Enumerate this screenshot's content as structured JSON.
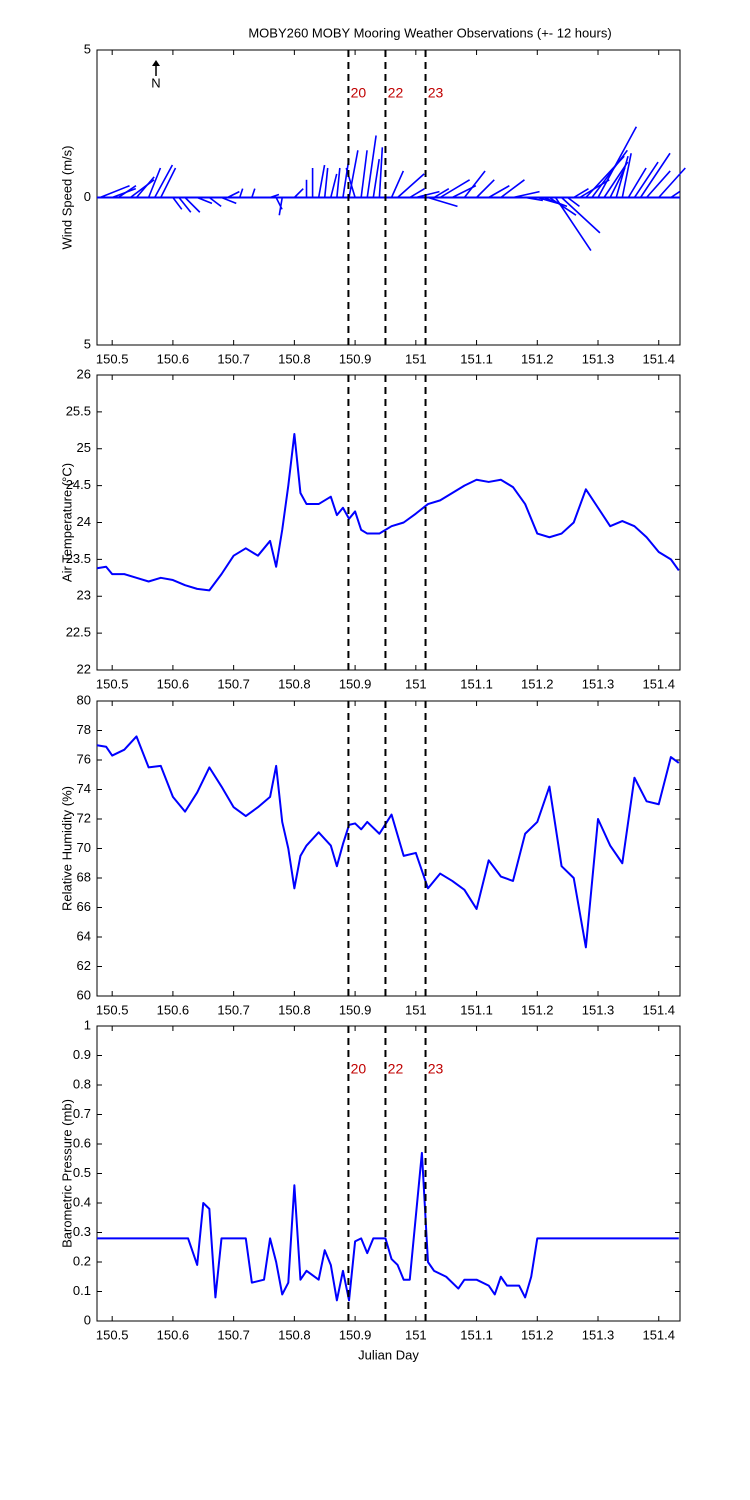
{
  "chart_data": [
    {
      "type": "stick",
      "title": "MOBY260 MOBY Mooring Weather Observations (+- 12 hours)",
      "ylabel": "Wind Speed (m/s)",
      "north_label": "N",
      "color": "#0000ff",
      "xlim": [
        150.475,
        151.435
      ],
      "xticks": [
        150.5,
        150.6,
        150.7,
        150.8,
        150.9,
        151,
        151.1,
        151.2,
        151.3,
        151.4
      ],
      "ylim": [
        -5,
        5
      ],
      "yticks": [
        {
          "value": -5,
          "label": "5"
        },
        0,
        5
      ],
      "vlines": [
        {
          "value": 150.889,
          "label": "20"
        },
        {
          "value": 150.95,
          "label": "22"
        },
        {
          "value": 151.016,
          "label": "23"
        }
      ],
      "x": [
        150.48,
        150.5,
        150.51,
        150.53,
        150.54,
        150.56,
        150.57,
        150.58,
        150.6,
        150.61,
        150.62,
        150.64,
        150.66,
        150.68,
        150.69,
        150.71,
        150.73,
        150.76,
        150.77,
        150.78,
        150.8,
        150.82,
        150.83,
        150.84,
        150.85,
        150.86,
        150.87,
        150.88,
        150.89,
        150.9,
        150.91,
        150.92,
        150.93,
        150.94,
        150.96,
        150.97,
        150.99,
        151.0,
        151.02,
        151.03,
        151.04,
        151.06,
        151.08,
        151.1,
        151.12,
        151.14,
        151.16,
        151.18,
        151.2,
        151.21,
        151.22,
        151.23,
        151.24,
        151.25,
        151.26,
        151.27,
        151.28,
        151.29,
        151.3,
        151.31,
        151.32,
        151.33,
        151.34,
        151.35,
        151.36,
        151.37,
        151.38,
        151.4,
        151.42
      ],
      "u": [
        1.0,
        0.8,
        0.6,
        0.8,
        0.6,
        0.4,
        0.6,
        0.5,
        0.3,
        0.4,
        0.5,
        0.5,
        0.4,
        0.5,
        0.4,
        0.1,
        0.1,
        0.3,
        0.2,
        -0.1,
        0.3,
        0.0,
        0.0,
        0.2,
        0.1,
        0.2,
        0.1,
        0.2,
        0.3,
        -0.3,
        0.2,
        0.3,
        0.2,
        0.1,
        0.4,
        0.9,
        0.5,
        0.8,
        1.0,
        0.5,
        1.0,
        0.8,
        0.7,
        0.6,
        0.7,
        0.8,
        0.9,
        0.6,
        0.7,
        0.8,
        0.9,
        1.2,
        1.3,
        0.4,
        0.5,
        1.0,
        1.3,
        1.2,
        1.3,
        0.8,
        0.5,
        0.4,
        0.3,
        0.6,
        0.8,
        1.0,
        0.8,
        0.9,
        0.3
      ],
      "v": [
        0.4,
        0.3,
        0.4,
        0.6,
        0.7,
        1.0,
        1.1,
        1.0,
        -0.4,
        -0.5,
        -0.5,
        -0.2,
        -0.3,
        -0.2,
        0.2,
        0.3,
        0.3,
        0.1,
        -0.4,
        -0.6,
        0.3,
        0.6,
        1.0,
        1.1,
        1.0,
        0.8,
        1.0,
        1.3,
        1.6,
        1.0,
        1.6,
        2.1,
        1.3,
        1.7,
        0.9,
        0.8,
        0.3,
        0.2,
        -0.3,
        0.3,
        0.6,
        0.4,
        0.9,
        0.6,
        0.4,
        0.6,
        0.2,
        -0.1,
        -0.2,
        -0.3,
        -0.6,
        -1.8,
        -1.2,
        -0.3,
        0.3,
        0.6,
        1.4,
        1.6,
        2.4,
        1.2,
        1.0,
        1.4,
        1.5,
        1.0,
        1.2,
        1.5,
        0.9,
        1.0,
        0.2
      ]
    },
    {
      "type": "line",
      "ylabel": "Air Temperature (°C)",
      "color": "#0000ff",
      "xlim": [
        150.475,
        151.435
      ],
      "xticks": [
        150.5,
        150.6,
        150.7,
        150.8,
        150.9,
        151,
        151.1,
        151.2,
        151.3,
        151.4
      ],
      "ylim": [
        22,
        26
      ],
      "yticks": [
        22,
        22.5,
        23,
        23.5,
        24,
        24.5,
        25,
        25.5,
        26
      ],
      "vlines": [
        150.889,
        150.95,
        151.016
      ],
      "x": [
        150.475,
        150.49,
        150.5,
        150.52,
        150.54,
        150.56,
        150.58,
        150.6,
        150.62,
        150.64,
        150.66,
        150.68,
        150.7,
        150.72,
        150.74,
        150.76,
        150.77,
        150.78,
        150.79,
        150.8,
        150.81,
        150.82,
        150.84,
        150.86,
        150.87,
        150.88,
        150.89,
        150.9,
        150.91,
        150.92,
        150.94,
        150.96,
        150.98,
        151.0,
        151.02,
        151.04,
        151.06,
        151.08,
        151.1,
        151.12,
        151.14,
        151.16,
        151.18,
        151.2,
        151.22,
        151.24,
        151.26,
        151.28,
        151.3,
        151.32,
        151.34,
        151.36,
        151.38,
        151.4,
        151.42,
        151.433
      ],
      "values": [
        23.38,
        23.4,
        23.3,
        23.3,
        23.25,
        23.2,
        23.25,
        23.22,
        23.15,
        23.1,
        23.08,
        23.3,
        23.55,
        23.65,
        23.55,
        23.75,
        23.4,
        23.9,
        24.5,
        25.2,
        24.4,
        24.25,
        24.25,
        24.35,
        24.1,
        24.2,
        24.05,
        24.15,
        23.9,
        23.85,
        23.85,
        23.95,
        24.0,
        24.12,
        24.25,
        24.3,
        24.4,
        24.5,
        24.58,
        24.55,
        24.58,
        24.48,
        24.25,
        23.85,
        23.8,
        23.85,
        24.0,
        24.45,
        24.2,
        23.95,
        24.02,
        23.95,
        23.8,
        23.6,
        23.5,
        23.35
      ]
    },
    {
      "type": "line",
      "ylabel": "Relative Humidity (%)",
      "color": "#0000ff",
      "xlim": [
        150.475,
        151.435
      ],
      "xticks": [
        150.5,
        150.6,
        150.7,
        150.8,
        150.9,
        151,
        151.1,
        151.2,
        151.3,
        151.4
      ],
      "ylim": [
        60,
        80
      ],
      "yticks": [
        60,
        62,
        64,
        66,
        68,
        70,
        72,
        74,
        76,
        78,
        80
      ],
      "vlines": [
        150.889,
        150.95,
        151.016
      ],
      "x": [
        150.475,
        150.49,
        150.5,
        150.52,
        150.54,
        150.56,
        150.58,
        150.6,
        150.62,
        150.64,
        150.66,
        150.68,
        150.7,
        150.72,
        150.74,
        150.76,
        150.77,
        150.78,
        150.79,
        150.8,
        150.81,
        150.82,
        150.84,
        150.86,
        150.87,
        150.88,
        150.89,
        150.9,
        150.91,
        150.92,
        150.94,
        150.96,
        150.98,
        151.0,
        151.02,
        151.04,
        151.06,
        151.08,
        151.1,
        151.12,
        151.14,
        151.16,
        151.18,
        151.2,
        151.22,
        151.24,
        151.26,
        151.28,
        151.3,
        151.32,
        151.34,
        151.36,
        151.38,
        151.4,
        151.42,
        151.433
      ],
      "values": [
        77.0,
        76.9,
        76.3,
        76.7,
        77.6,
        75.5,
        75.6,
        73.5,
        72.5,
        73.8,
        75.5,
        74.2,
        72.8,
        72.2,
        72.8,
        73.5,
        75.6,
        71.8,
        70.0,
        67.3,
        69.5,
        70.2,
        71.1,
        70.2,
        68.8,
        70.3,
        71.6,
        71.7,
        71.3,
        71.8,
        71.0,
        72.3,
        69.5,
        69.7,
        67.3,
        68.3,
        67.8,
        67.2,
        65.9,
        69.2,
        68.1,
        67.8,
        71.0,
        71.8,
        74.2,
        68.8,
        68.0,
        63.3,
        72.0,
        70.2,
        69.0,
        74.8,
        73.2,
        73.0,
        76.2,
        75.8
      ]
    },
    {
      "type": "line",
      "ylabel": "Barometric Pressure (mb)",
      "xlabel": "Julian Day",
      "color": "#0000ff",
      "xlim": [
        150.475,
        151.435
      ],
      "xticks": [
        150.5,
        150.6,
        150.7,
        150.8,
        150.9,
        151,
        151.1,
        151.2,
        151.3,
        151.4
      ],
      "ylim": [
        0,
        1
      ],
      "yticks": [
        0,
        0.1,
        0.2,
        0.3,
        0.4,
        0.5,
        0.6,
        0.7,
        0.8,
        0.9,
        1
      ],
      "vlines": [
        {
          "value": 150.889,
          "label": "20"
        },
        {
          "value": 150.95,
          "label": "22"
        },
        {
          "value": 151.016,
          "label": "23"
        }
      ],
      "x": [
        150.475,
        150.625,
        150.64,
        150.65,
        150.66,
        150.67,
        150.68,
        150.7,
        150.72,
        150.73,
        150.75,
        150.76,
        150.77,
        150.78,
        150.79,
        150.8,
        150.81,
        150.82,
        150.84,
        150.85,
        150.86,
        150.87,
        150.88,
        150.89,
        150.9,
        150.91,
        150.92,
        150.93,
        150.95,
        150.96,
        150.97,
        150.98,
        150.99,
        151.01,
        151.02,
        151.03,
        151.05,
        151.07,
        151.08,
        151.1,
        151.12,
        151.13,
        151.14,
        151.15,
        151.17,
        151.18,
        151.19,
        151.2,
        151.433
      ],
      "values": [
        0.28,
        0.28,
        0.19,
        0.4,
        0.38,
        0.08,
        0.28,
        0.28,
        0.28,
        0.13,
        0.14,
        0.28,
        0.2,
        0.09,
        0.13,
        0.46,
        0.14,
        0.17,
        0.14,
        0.24,
        0.19,
        0.07,
        0.17,
        0.07,
        0.27,
        0.28,
        0.23,
        0.28,
        0.28,
        0.21,
        0.19,
        0.14,
        0.14,
        0.57,
        0.2,
        0.17,
        0.15,
        0.11,
        0.14,
        0.14,
        0.12,
        0.09,
        0.15,
        0.12,
        0.12,
        0.08,
        0.15,
        0.28,
        0.28
      ]
    }
  ]
}
